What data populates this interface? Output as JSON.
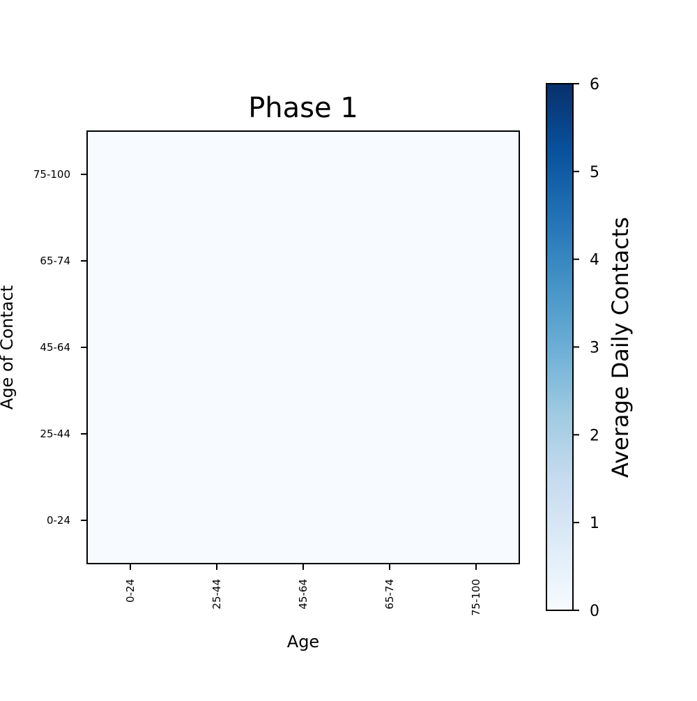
{
  "chart_data": {
    "type": "heatmap",
    "title": "Phase 1",
    "xlabel": "Age",
    "ylabel": "Age of Contact",
    "x_categories": [
      "0-24",
      "25-44",
      "45-64",
      "65-74",
      "75-100"
    ],
    "y_categories": [
      "0-24",
      "25-44",
      "45-64",
      "65-74",
      "75-100"
    ],
    "values": [
      [
        0,
        0,
        0,
        0,
        0
      ],
      [
        0,
        0,
        0,
        0,
        0
      ],
      [
        0,
        0,
        0,
        0,
        0
      ],
      [
        0,
        0,
        0,
        0,
        0
      ],
      [
        0,
        0,
        0,
        0,
        0
      ]
    ],
    "colorbar": {
      "label": "Average Daily Contacts",
      "range": [
        0,
        6
      ],
      "ticks": [
        "0",
        "1",
        "2",
        "3",
        "4",
        "5",
        "6"
      ],
      "colormap": "Blues",
      "colors": [
        "#f7fbff",
        "#deebf7",
        "#c6dbef",
        "#9ecae1",
        "#6baed6",
        "#4292c6",
        "#2171b5",
        "#08519c",
        "#08306b"
      ]
    },
    "grid": false
  }
}
